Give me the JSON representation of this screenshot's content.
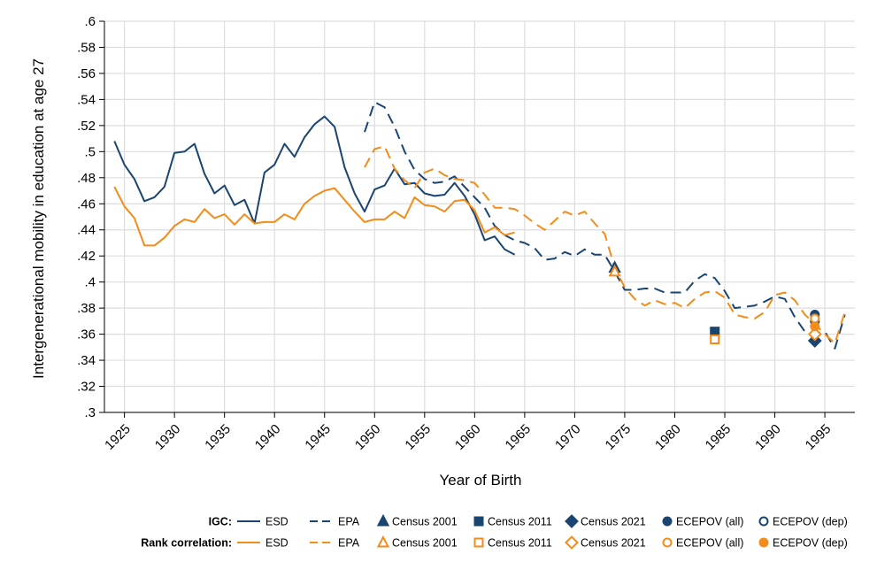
{
  "chart_data": {
    "type": "line",
    "title": "",
    "xlabel": "Year of Birth",
    "ylabel": "Intergenerational mobility in education at age 27",
    "xlim": [
      1923,
      1998
    ],
    "ylim": [
      0.3,
      0.6
    ],
    "xticks": [
      1925,
      1930,
      1935,
      1940,
      1945,
      1950,
      1955,
      1960,
      1965,
      1970,
      1975,
      1980,
      1985,
      1990,
      1995
    ],
    "xtick_labels": [
      "1925",
      "1930",
      "1935",
      "1940",
      "1945",
      "1950",
      "1955",
      "1960",
      "1965",
      "1970",
      "1975",
      "1980",
      "1985",
      "1990",
      "1995"
    ],
    "yticks": [
      0.3,
      0.32,
      0.34,
      0.36,
      0.38,
      0.4,
      0.42,
      0.44,
      0.46,
      0.48,
      0.5,
      0.52,
      0.54,
      0.56,
      0.58,
      0.6
    ],
    "ytick_labels": [
      ".3",
      ".32",
      ".34",
      ".36",
      ".38",
      ".4",
      ".42",
      ".44",
      ".46",
      ".48",
      ".5",
      ".52",
      ".54",
      ".56",
      ".58",
      ".6"
    ],
    "grid": true,
    "colors": {
      "igc": "#1a4570",
      "rank": "#f28c1a",
      "grid": "#dddddd"
    },
    "series": [
      {
        "name": "IGC ESD",
        "measure": "igc",
        "style": "solid",
        "x": [
          1924,
          1925,
          1926,
          1927,
          1928,
          1929,
          1930,
          1931,
          1932,
          1933,
          1934,
          1935,
          1936,
          1937,
          1938,
          1939,
          1940,
          1941,
          1942,
          1943,
          1944,
          1945,
          1946,
          1947,
          1948,
          1949,
          1950,
          1951,
          1952,
          1953,
          1954,
          1955,
          1956,
          1957,
          1958,
          1959,
          1960,
          1961,
          1962,
          1963,
          1964
        ],
        "y": [
          0.508,
          0.49,
          0.479,
          0.462,
          0.465,
          0.473,
          0.499,
          0.5,
          0.506,
          0.483,
          0.468,
          0.474,
          0.459,
          0.463,
          0.445,
          0.484,
          0.49,
          0.506,
          0.496,
          0.511,
          0.521,
          0.527,
          0.519,
          0.488,
          0.468,
          0.454,
          0.471,
          0.474,
          0.487,
          0.475,
          0.476,
          0.468,
          0.466,
          0.467,
          0.476,
          0.466,
          0.452,
          0.432,
          0.435,
          0.425,
          0.421
        ]
      },
      {
        "name": "IGC EPA",
        "measure": "igc",
        "style": "dash",
        "x": [
          1949,
          1950,
          1951,
          1952,
          1953,
          1954,
          1955,
          1956,
          1957,
          1958,
          1959,
          1960,
          1961,
          1962,
          1963,
          1964,
          1965,
          1966,
          1967,
          1968,
          1969,
          1970,
          1971,
          1972,
          1973,
          1974,
          1975,
          1976,
          1977,
          1978,
          1979,
          1980,
          1981,
          1982,
          1983,
          1984,
          1985,
          1986,
          1987,
          1988,
          1989,
          1990,
          1991,
          1992,
          1993,
          1994,
          1995,
          1996,
          1997
        ],
        "y": [
          0.515,
          0.538,
          0.534,
          0.519,
          0.5,
          0.486,
          0.479,
          0.476,
          0.477,
          0.481,
          0.473,
          0.465,
          0.457,
          0.443,
          0.436,
          0.432,
          0.43,
          0.426,
          0.417,
          0.418,
          0.423,
          0.42,
          0.425,
          0.421,
          0.421,
          0.408,
          0.394,
          0.394,
          0.395,
          0.395,
          0.392,
          0.392,
          0.392,
          0.401,
          0.406,
          0.403,
          0.393,
          0.38,
          0.381,
          0.382,
          0.385,
          0.389,
          0.387,
          0.373,
          0.362,
          0.36,
          0.362,
          0.349,
          0.375
        ]
      },
      {
        "name": "Rank correlation ESD",
        "measure": "rank",
        "style": "solid",
        "x": [
          1924,
          1925,
          1926,
          1927,
          1928,
          1929,
          1930,
          1931,
          1932,
          1933,
          1934,
          1935,
          1936,
          1937,
          1938,
          1939,
          1940,
          1941,
          1942,
          1943,
          1944,
          1945,
          1946,
          1947,
          1948,
          1949,
          1950,
          1951,
          1952,
          1953,
          1954,
          1955,
          1956,
          1957,
          1958,
          1959,
          1960,
          1961,
          1962,
          1963,
          1964
        ],
        "y": [
          0.473,
          0.458,
          0.449,
          0.428,
          0.428,
          0.434,
          0.443,
          0.448,
          0.446,
          0.456,
          0.449,
          0.452,
          0.444,
          0.452,
          0.445,
          0.446,
          0.446,
          0.452,
          0.448,
          0.46,
          0.466,
          0.47,
          0.472,
          0.463,
          0.454,
          0.446,
          0.448,
          0.448,
          0.454,
          0.449,
          0.465,
          0.459,
          0.458,
          0.454,
          0.462,
          0.463,
          0.455,
          0.438,
          0.442,
          0.436,
          0.438
        ]
      },
      {
        "name": "Rank correlation EPA",
        "measure": "rank",
        "style": "dash",
        "x": [
          1949,
          1950,
          1951,
          1952,
          1953,
          1954,
          1955,
          1956,
          1957,
          1958,
          1959,
          1960,
          1961,
          1962,
          1963,
          1964,
          1965,
          1966,
          1967,
          1968,
          1969,
          1970,
          1971,
          1972,
          1973,
          1974,
          1975,
          1976,
          1977,
          1978,
          1979,
          1980,
          1981,
          1982,
          1983,
          1984,
          1985,
          1986,
          1987,
          1988,
          1989,
          1990,
          1991,
          1992,
          1993,
          1994,
          1995,
          1996,
          1997
        ],
        "y": [
          0.488,
          0.502,
          0.504,
          0.487,
          0.478,
          0.472,
          0.484,
          0.487,
          0.482,
          0.479,
          0.478,
          0.476,
          0.467,
          0.457,
          0.457,
          0.456,
          0.451,
          0.445,
          0.44,
          0.447,
          0.454,
          0.451,
          0.454,
          0.445,
          0.437,
          0.411,
          0.396,
          0.387,
          0.382,
          0.386,
          0.383,
          0.384,
          0.38,
          0.387,
          0.392,
          0.393,
          0.388,
          0.375,
          0.373,
          0.372,
          0.377,
          0.39,
          0.392,
          0.386,
          0.375,
          0.368,
          0.36,
          0.353,
          0.377
        ]
      }
    ],
    "points": [
      {
        "name": "IGC Census 2001",
        "measure": "igc",
        "marker": "triangle",
        "filled": true,
        "x": 1974,
        "y": 0.411
      },
      {
        "name": "IGC Census 2011",
        "measure": "igc",
        "marker": "square",
        "filled": true,
        "x": 1984,
        "y": 0.362
      },
      {
        "name": "IGC Census 2021",
        "measure": "igc",
        "marker": "diamond",
        "filled": true,
        "x": 1994,
        "y": 0.355
      },
      {
        "name": "IGC ECEPOV (all)",
        "measure": "igc",
        "marker": "circle",
        "filled": true,
        "x": 1994,
        "y": 0.375
      },
      {
        "name": "IGC ECEPOV (dep)",
        "measure": "igc",
        "marker": "circle",
        "filled": false,
        "x": 1994,
        "y": 0.37
      },
      {
        "name": "Rank Census 2001",
        "measure": "rank",
        "marker": "triangle",
        "filled": false,
        "x": 1974,
        "y": 0.408
      },
      {
        "name": "Rank Census 2011",
        "measure": "rank",
        "marker": "square",
        "filled": false,
        "x": 1984,
        "y": 0.356
      },
      {
        "name": "Rank Census 2021",
        "measure": "rank",
        "marker": "diamond",
        "filled": false,
        "x": 1994,
        "y": 0.36
      },
      {
        "name": "Rank ECEPOV (all)",
        "measure": "rank",
        "marker": "circle",
        "filled": false,
        "x": 1994,
        "y": 0.372
      },
      {
        "name": "Rank ECEPOV (dep)",
        "measure": "rank",
        "marker": "circle",
        "filled": true,
        "x": 1994,
        "y": 0.366
      }
    ],
    "legend": {
      "placement": "bottom",
      "rows": [
        {
          "heading": "IGC:",
          "measure": "igc",
          "items": [
            {
              "label": "ESD",
              "kind": "line",
              "style": "solid"
            },
            {
              "label": "EPA",
              "kind": "line",
              "style": "dash"
            },
            {
              "label": "Census 2001",
              "kind": "marker",
              "marker": "triangle",
              "filled": true
            },
            {
              "label": "Census 2011",
              "kind": "marker",
              "marker": "square",
              "filled": true
            },
            {
              "label": "Census 2021",
              "kind": "marker",
              "marker": "diamond",
              "filled": true
            },
            {
              "label": "ECEPOV (all)",
              "kind": "marker",
              "marker": "circle",
              "filled": true
            },
            {
              "label": "ECEPOV (dep)",
              "kind": "marker",
              "marker": "circle",
              "filled": false
            }
          ]
        },
        {
          "heading": "Rank correlation:",
          "measure": "rank",
          "items": [
            {
              "label": "ESD",
              "kind": "line",
              "style": "solid"
            },
            {
              "label": "EPA",
              "kind": "line",
              "style": "dash"
            },
            {
              "label": "Census 2001",
              "kind": "marker",
              "marker": "triangle",
              "filled": false
            },
            {
              "label": "Census 2011",
              "kind": "marker",
              "marker": "square",
              "filled": false
            },
            {
              "label": "Census 2021",
              "kind": "marker",
              "marker": "diamond",
              "filled": false
            },
            {
              "label": "ECEPOV (all)",
              "kind": "marker",
              "marker": "circle",
              "filled": false
            },
            {
              "label": "ECEPOV (dep)",
              "kind": "marker",
              "marker": "circle",
              "filled": true
            }
          ]
        }
      ]
    }
  }
}
